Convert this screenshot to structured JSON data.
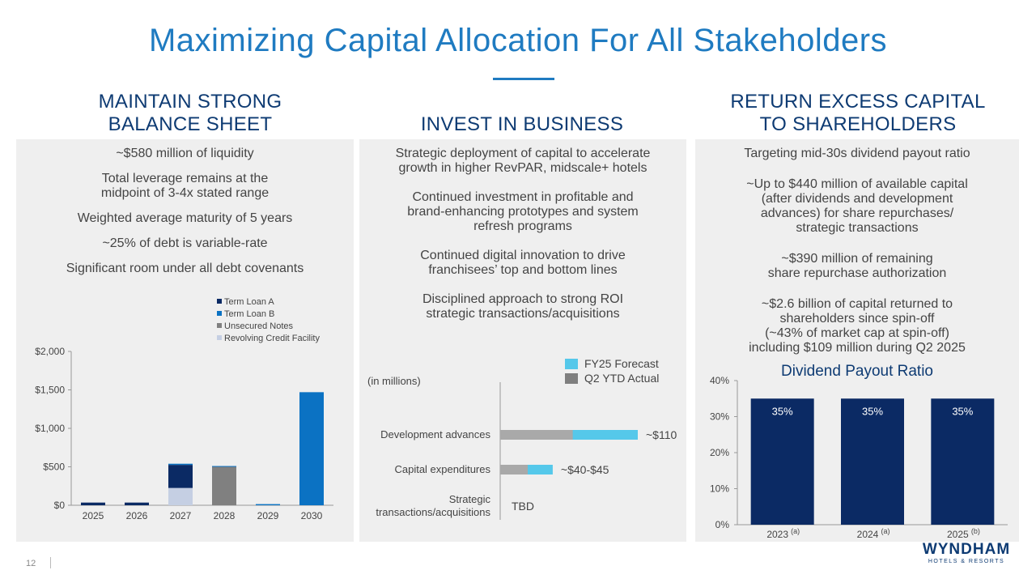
{
  "title": "Maximizing Capital Allocation For All Stakeholders",
  "columns": {
    "left": {
      "heading": [
        "MAINTAIN STRONG",
        "BALANCE SHEET"
      ],
      "bullets": [
        "~$580 million of liquidity",
        "Total leverage remains at the",
        "midpoint of 3-4x stated range",
        "Weighted average maturity of 5 years",
        "~25% of debt is variable-rate",
        "Significant room under all debt covenants"
      ]
    },
    "middle": {
      "heading": "INVEST IN BUSINESS",
      "bullets": [
        [
          "Strategic deployment of capital to accelerate",
          "growth in higher RevPAR, midscale+ hotels"
        ],
        [
          "Continued investment in profitable and",
          "brand-enhancing prototypes and system",
          "refresh programs"
        ],
        [
          "Continued digital innovation to drive",
          "franchisees’ top and bottom lines"
        ],
        [
          "Disciplined approach to strong ROI",
          "strategic transactions/acquisitions"
        ]
      ]
    },
    "right": {
      "heading": [
        "RETURN EXCESS CAPITAL",
        "TO SHAREHOLDERS"
      ],
      "bullets": [
        [
          "Targeting mid-30s dividend payout ratio"
        ],
        [
          "~Up to $440 million of available capital",
          "(after dividends and development",
          "advances) for share repurchases/",
          "strategic transactions"
        ],
        [
          "~$390 million of remaining",
          "share repurchase authorization"
        ],
        [
          "~$2.6 billion of capital returned to",
          "shareholders since spin-off",
          "(~43% of market cap at spin-off)",
          "including $109 million during Q2 2025"
        ]
      ]
    }
  },
  "chart_data": [
    {
      "type": "bar",
      "stacked": true,
      "title": "",
      "categories": [
        "2025",
        "2026",
        "2027",
        "2028",
        "2029",
        "2030"
      ],
      "series": [
        {
          "name": "Term Loan A",
          "color": "#0b2a64",
          "values": [
            35,
            35,
            300,
            0,
            0,
            0
          ]
        },
        {
          "name": "Term Loan B",
          "color": "#0b72c3",
          "values": [
            0,
            0,
            15,
            10,
            15,
            1470
          ]
        },
        {
          "name": "Unsecured Notes",
          "color": "#808080",
          "values": [
            0,
            0,
            0,
            500,
            0,
            0
          ]
        },
        {
          "name": "Revolving Credit Facility",
          "color": "#c5cfe3",
          "values": [
            0,
            0,
            225,
            0,
            0,
            0
          ]
        }
      ],
      "yticks": [
        "$0",
        "$500",
        "$1,000",
        "$1,500",
        "$2,000"
      ],
      "ylim": [
        0,
        2000
      ],
      "legend": "top-right"
    },
    {
      "type": "bar",
      "orientation": "horizontal",
      "units_note": "(in millions)",
      "categories": [
        "Development advances",
        "Capital expenditures",
        "Strategic transactions/acquisitions"
      ],
      "category_lines": [
        [
          "Development advances"
        ],
        [
          "Capital expenditures"
        ],
        [
          "Strategic",
          "transactions/acquisitions"
        ]
      ],
      "series": [
        {
          "name": "FY25 Forecast",
          "color": "#55c8ea",
          "values": [
            110,
            42,
            0
          ]
        },
        {
          "name": "Q2 YTD Actual",
          "color": "#a9a9a9",
          "values": [
            58,
            22,
            0
          ]
        }
      ],
      "data_labels": [
        "~$110",
        "~$40-$45",
        "TBD"
      ],
      "legend": "top-right"
    },
    {
      "type": "bar",
      "title": "Dividend Payout Ratio",
      "categories": [
        "2023",
        "2024",
        "2025"
      ],
      "category_notes": [
        "(a)",
        "(a)",
        "(b)"
      ],
      "values": [
        35,
        35,
        35
      ],
      "data_labels": [
        "35%",
        "35%",
        "35%"
      ],
      "yticks": [
        "0%",
        "10%",
        "20%",
        "30%",
        "40%"
      ],
      "ylim": [
        0,
        40
      ],
      "color": "#0b2a64"
    }
  ],
  "footer": {
    "page_number": "12"
  },
  "logo": {
    "wordmark": "WYNDHAM",
    "subline": "HOTELS & RESORTS"
  }
}
